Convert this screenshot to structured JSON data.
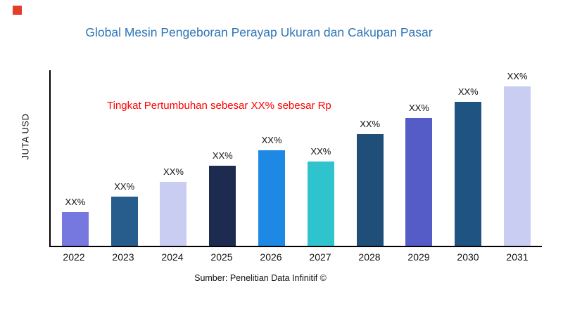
{
  "page": {
    "source": "Sumber: Penelitian Data Infinitif ©"
  },
  "annotation": {
    "text": "Tingkat Pertumbuhan sebesar XX% sebesar Rp",
    "color": "#ff0000"
  },
  "colors": {
    "title": "#2e75b6",
    "brand_square": "#e43e2b",
    "axis": "#000000",
    "background": "#ffffff"
  },
  "chart_data": {
    "type": "bar",
    "title": "Global Mesin Pengeboran Perayap Ukuran dan Cakupan Pasar",
    "categories": [
      "2022",
      "2023",
      "2024",
      "2025",
      "2026",
      "2027",
      "2028",
      "2029",
      "2030",
      "2031"
    ],
    "values": [
      21,
      31,
      40,
      50,
      60,
      53,
      70,
      80,
      90,
      100
    ],
    "bar_labels": [
      "XX%",
      "XX%",
      "XX%",
      "XX%",
      "XX%",
      "XX%",
      "XX%",
      "XX%",
      "XX%",
      "XX%"
    ],
    "bar_colors": [
      "#7678e0",
      "#275d8c",
      "#c9cdf2",
      "#1d2b50",
      "#1e88e5",
      "#2fc4cd",
      "#1f4e79",
      "#555cc8",
      "#1f5381",
      "#c9cdf2"
    ],
    "xlabel": "",
    "ylabel": "JUTA USD",
    "ylim": [
      0,
      110
    ],
    "grid": false,
    "legend": false
  }
}
